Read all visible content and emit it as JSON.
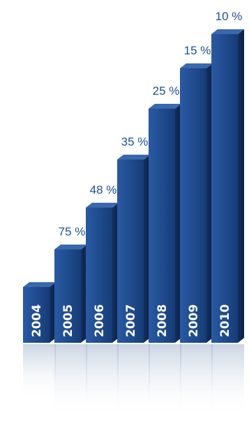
{
  "chart_data": {
    "type": "bar",
    "title": "",
    "xlabel": "",
    "ylabel": "",
    "categories": [
      "2004",
      "2005",
      "2006",
      "2007",
      "2008",
      "2009",
      "2010"
    ],
    "series": [
      {
        "value_labels": [
          "",
          "75 %",
          "48 %",
          "35 %",
          "25 %",
          "15 %",
          "10 %"
        ]
      }
    ],
    "bar_color": "#1f4a8c",
    "bar_side_color": "#102b57",
    "bar_top_color": "#3a68ad",
    "label_color": "#1d4f8f",
    "grid": false,
    "legend": "none",
    "style": "3d-columns-with-reflection"
  }
}
